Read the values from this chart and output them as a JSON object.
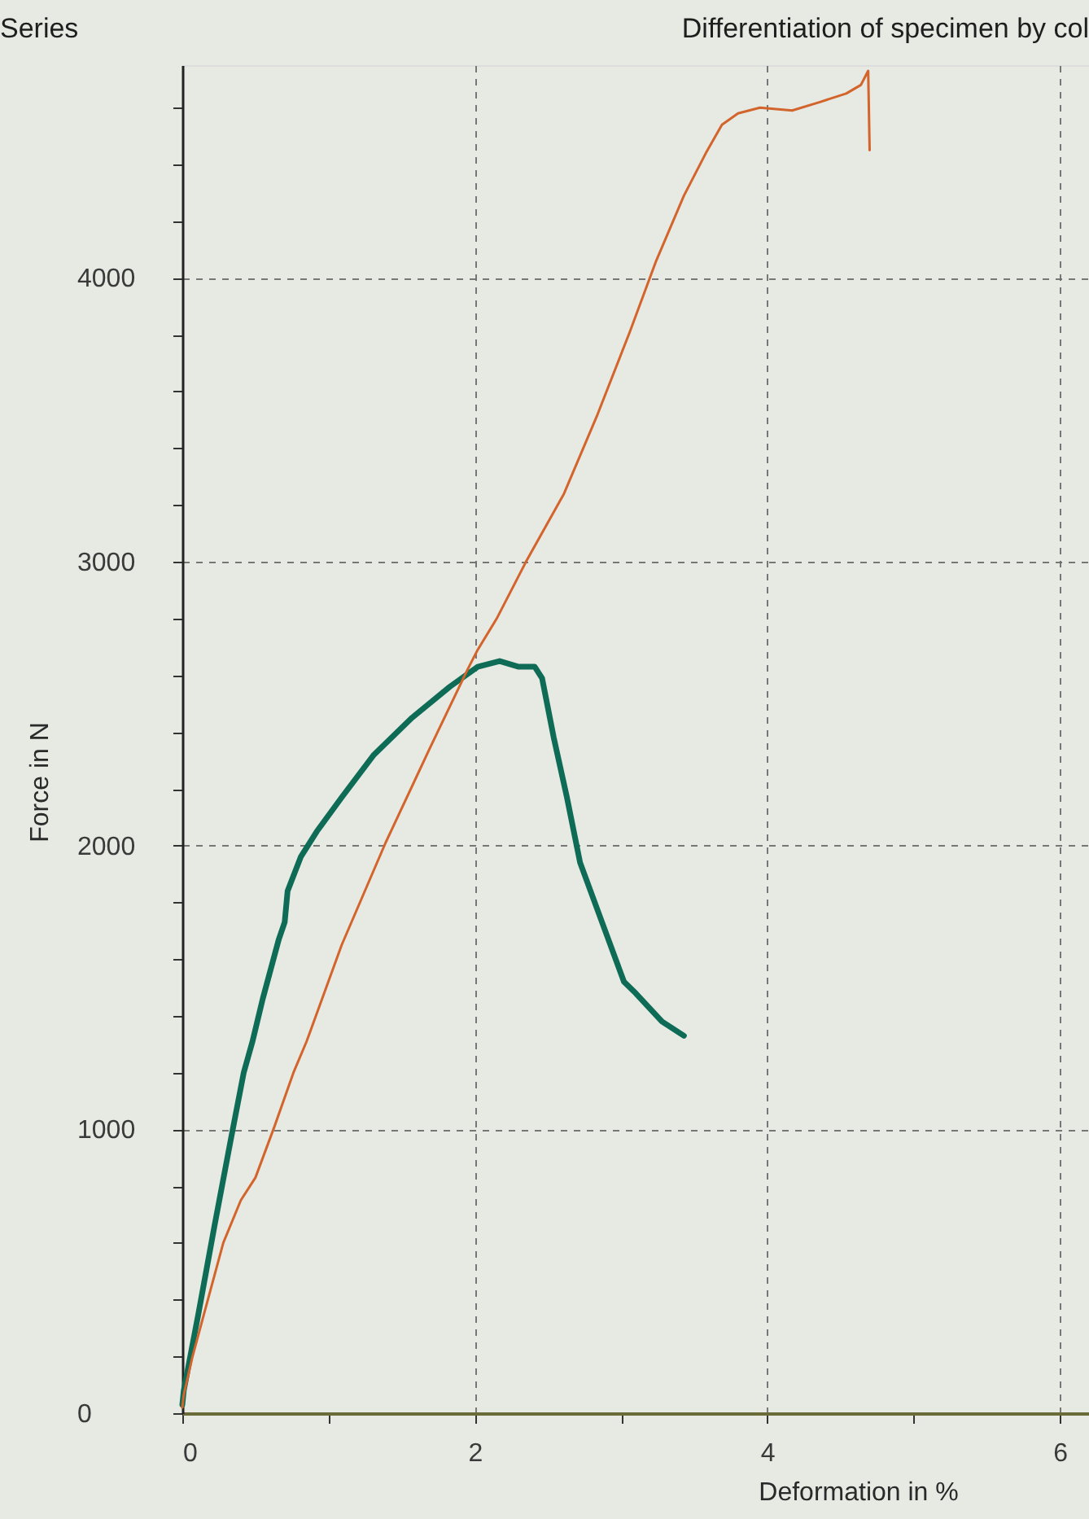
{
  "chart_data": {
    "type": "line",
    "title": "Differentiation of specimen by col",
    "xlabel": "Deformation in %",
    "ylabel": "Force in N",
    "annotations": [
      "Series"
    ],
    "xlim": [
      0,
      6.2
    ],
    "ylim": [
      0,
      4750
    ],
    "xticks": [
      0,
      {
        "value": 1,
        "label": null
      },
      2,
      {
        "value": 3,
        "label": null
      },
      4,
      {
        "value": 5,
        "label": null
      },
      6
    ],
    "yticks": [
      0,
      {
        "value": 200,
        "label": null
      },
      {
        "value": 400,
        "label": null
      },
      {
        "value": 600,
        "label": null
      },
      {
        "value": 800,
        "label": null
      },
      1000,
      {
        "value": 1200,
        "label": null
      },
      {
        "value": 1400,
        "label": null
      },
      {
        "value": 1600,
        "label": null
      },
      {
        "value": 1800,
        "label": null
      },
      2000,
      {
        "value": 2200,
        "label": null
      },
      {
        "value": 2400,
        "label": null
      },
      {
        "value": 2600,
        "label": null
      },
      {
        "value": 2800,
        "label": null
      },
      3000,
      {
        "value": 3200,
        "label": null
      },
      {
        "value": 3400,
        "label": null
      },
      {
        "value": 3600,
        "label": null
      },
      {
        "value": 3800,
        "label": null
      },
      4000,
      {
        "value": 4200,
        "label": null
      },
      {
        "value": 4400,
        "label": null
      },
      {
        "value": 4600,
        "label": null
      }
    ],
    "grid": true,
    "line_style": "solid",
    "series": [
      {
        "color": "#0e6b56",
        "x": [
          0,
          0.01,
          0.11,
          0.22,
          0.33,
          0.42,
          0.48,
          0.55,
          0.66,
          0.7,
          0.72,
          0.81,
          0.92,
          1.09,
          1.31,
          1.57,
          1.83,
          2.02,
          2.17,
          2.3,
          2.41,
          2.46,
          2.54,
          2.63,
          2.72,
          2.87,
          3.02,
          3.1,
          3.28,
          3.43
        ],
        "values": [
          30,
          80,
          350,
          660,
          960,
          1200,
          1310,
          1460,
          1670,
          1730,
          1840,
          1960,
          2050,
          2170,
          2320,
          2450,
          2560,
          2630,
          2650,
          2630,
          2630,
          2590,
          2380,
          2170,
          1940,
          1730,
          1520,
          1480,
          1380,
          1330
        ]
      },
      {
        "color": "#d2642c",
        "x": [
          0,
          0.01,
          0.07,
          0.18,
          0.28,
          0.4,
          0.5,
          0.63,
          0.76,
          0.85,
          1.09,
          1.39,
          1.69,
          1.95,
          2.02,
          2.15,
          2.35,
          2.61,
          2.84,
          3.06,
          3.24,
          3.43,
          3.58,
          3.69,
          3.8,
          3.95,
          4.17,
          4.36,
          4.54,
          4.64,
          4.69,
          4.7
        ],
        "values": [
          20,
          65,
          200,
          410,
          600,
          750,
          830,
          1010,
          1200,
          1310,
          1650,
          2010,
          2340,
          2620,
          2690,
          2800,
          3000,
          3240,
          3520,
          3810,
          4060,
          4290,
          4440,
          4540,
          4580,
          4600,
          4590,
          4620,
          4650,
          4680,
          4730,
          4450
        ]
      }
    ]
  }
}
